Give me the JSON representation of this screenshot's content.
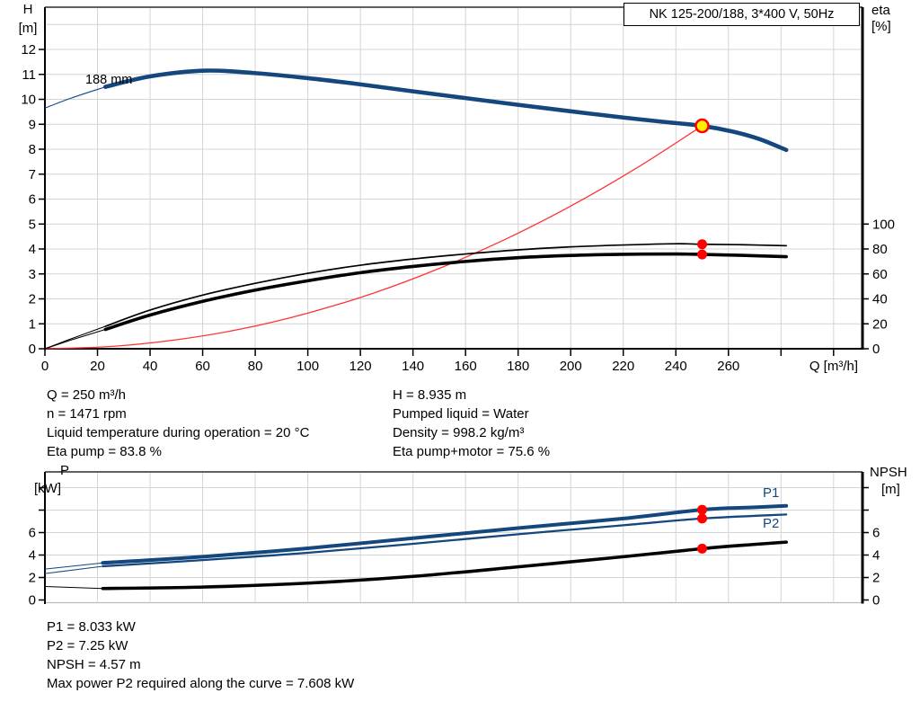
{
  "title_box": {
    "text": "NK 125-200/188, 3*400 V, 50Hz"
  },
  "colors": {
    "curve_blue": "#14477D",
    "curve_black": "#000000",
    "system_red": "#FF3333",
    "dot_red": "#FF0000",
    "duty_fill": "#FFEE00",
    "grid": "#D4D4D4",
    "axis": "#000000"
  },
  "axis_labels": {
    "top_left_1": "H",
    "top_left_2": "[m]",
    "top_right_1": "eta",
    "top_right_2": "[%]",
    "x_label": "Q [m³/h]",
    "bot_left_1": "P",
    "bot_left_2": "[kW]",
    "bot_right_1": "NPSH",
    "bot_right_2": "[m]"
  },
  "info_top": {
    "left": [
      "Q = 250 m³/h",
      "n = 1471 rpm",
      "Liquid temperature during operation = 20 °C",
      "Eta pump = 83.8 %"
    ],
    "right": [
      "H = 8.935 m",
      "Pumped liquid = Water",
      "Density = 998.2 kg/m³",
      "Eta pump+motor = 75.6 %"
    ]
  },
  "info_bottom": {
    "lines": [
      "P1 = 8.033 kW",
      "P2 = 7.25 kW",
      "NPSH = 4.57 m",
      "Max power P2 required along the curve = 7.608 kW"
    ]
  },
  "chart_data": [
    {
      "type": "line",
      "title": "NK 125-200/188, 3*400 V, 50Hz",
      "x": {
        "label": "Q [m³/h]",
        "min": 0,
        "max": 311,
        "grid_step": 20,
        "ticks_labeled": [
          0,
          20,
          40,
          60,
          80,
          100,
          120,
          140,
          160,
          180,
          200,
          220,
          240,
          260
        ],
        "ticks_unlabeled": [
          280,
          300
        ]
      },
      "y_left": {
        "label": "H [m]",
        "min": 0,
        "max": 13.7,
        "ticks": [
          0,
          1,
          2,
          3,
          4,
          5,
          6,
          7,
          8,
          9,
          10,
          11,
          12
        ],
        "labeled": [
          0,
          1,
          2,
          3,
          4,
          5,
          6,
          7,
          8,
          9,
          10,
          11,
          12
        ]
      },
      "y_right": {
        "label": "eta [%]",
        "ticks": [
          0,
          20,
          40,
          60,
          80,
          100
        ],
        "labeled": [
          0,
          20,
          40,
          60,
          80,
          100
        ],
        "left_units_per_unit": 0.05
      },
      "series": [
        {
          "name": "system-curve",
          "label": null,
          "axis": "left",
          "color": "system_red",
          "width": 1.3,
          "points": [
            [
              0,
              0
            ],
            [
              25,
              0.09
            ],
            [
              50,
              0.36
            ],
            [
              75,
              0.8
            ],
            [
              100,
              1.43
            ],
            [
              125,
              2.23
            ],
            [
              150,
              3.22
            ],
            [
              175,
              4.38
            ],
            [
              200,
              5.72
            ],
            [
              225,
              7.24
            ],
            [
              250,
              8.935
            ]
          ]
        },
        {
          "name": "eta-pump-curve",
          "label": null,
          "axis": "right",
          "color": "curve_black",
          "width": 1.7,
          "thin_until": 23,
          "points": [
            [
              0,
              0
            ],
            [
              10,
              8
            ],
            [
              23,
              18
            ],
            [
              40,
              31
            ],
            [
              60,
              43
            ],
            [
              80,
              52.5
            ],
            [
              100,
              60.5
            ],
            [
              120,
              67
            ],
            [
              140,
              72
            ],
            [
              160,
              76
            ],
            [
              180,
              79.3
            ],
            [
              200,
              81.7
            ],
            [
              220,
              83.2
            ],
            [
              240,
              84.2
            ],
            [
              250,
              83.8
            ],
            [
              265,
              83.4
            ],
            [
              282,
              82.6
            ]
          ]
        },
        {
          "name": "eta-pump-motor-curve",
          "label": null,
          "axis": "right",
          "color": "curve_black",
          "width": 3.6,
          "thin_until": 23,
          "points": [
            [
              0,
              0
            ],
            [
              10,
              7
            ],
            [
              23,
              15.5
            ],
            [
              40,
              27
            ],
            [
              60,
              38
            ],
            [
              80,
              47
            ],
            [
              100,
              54.5
            ],
            [
              120,
              61
            ],
            [
              140,
              66
            ],
            [
              160,
              70
            ],
            [
              180,
              73
            ],
            [
              200,
              74.8
            ],
            [
              220,
              75.7
            ],
            [
              240,
              76
            ],
            [
              250,
              75.6
            ],
            [
              265,
              74.9
            ],
            [
              282,
              73.8
            ]
          ]
        },
        {
          "name": "qh-curve-188mm",
          "label": "188 mm",
          "axis": "left",
          "color": "curve_blue",
          "width": 4.6,
          "thin_until": 23,
          "points": [
            [
              0,
              9.65
            ],
            [
              10,
              10.05
            ],
            [
              23,
              10.5
            ],
            [
              40,
              10.92
            ],
            [
              61,
              11.15
            ],
            [
              80,
              11.05
            ],
            [
              100,
              10.85
            ],
            [
              120,
              10.6
            ],
            [
              140,
              10.32
            ],
            [
              160,
              10.05
            ],
            [
              180,
              9.78
            ],
            [
              200,
              9.52
            ],
            [
              220,
              9.27
            ],
            [
              235,
              9.1
            ],
            [
              250,
              8.935
            ],
            [
              262,
              8.7
            ],
            [
              272,
              8.4
            ],
            [
              282,
              7.97
            ]
          ]
        }
      ],
      "markers": [
        {
          "name": "duty-point",
          "q": 250,
          "value": 8.935,
          "axis": "left",
          "style": "duty"
        },
        {
          "name": "eta-pump-point",
          "q": 250,
          "value": 83.8,
          "axis": "right",
          "style": "dot"
        },
        {
          "name": "eta-pump-motor-point",
          "q": 250,
          "value": 75.6,
          "axis": "right",
          "style": "dot"
        }
      ]
    },
    {
      "type": "line",
      "title": "",
      "x": {
        "label": "",
        "min": 0,
        "max": 311,
        "grid_step": 20,
        "ticks_labeled": [],
        "ticks_unlabeled": []
      },
      "y_left": {
        "label": "P [kW]",
        "min": 0,
        "max": 11.4,
        "ticks": [
          0,
          2,
          4,
          6,
          8,
          10
        ],
        "labeled": [
          0,
          2,
          4,
          6
        ]
      },
      "y_right": {
        "label": "NPSH [m]",
        "ticks": [
          0,
          2,
          4,
          6,
          8,
          10
        ],
        "labeled": [
          0,
          2,
          4,
          6
        ],
        "left_units_per_unit": 1
      },
      "series": [
        {
          "name": "npsh-curve",
          "label": null,
          "axis": "left",
          "color": "curve_black",
          "width": 3.6,
          "thin_until": 22,
          "points": [
            [
              0,
              1.2
            ],
            [
              22,
              1.02
            ],
            [
              60,
              1.15
            ],
            [
              100,
              1.5
            ],
            [
              140,
              2.1
            ],
            [
              180,
              2.95
            ],
            [
              220,
              3.85
            ],
            [
              250,
              4.57
            ],
            [
              270,
              4.95
            ],
            [
              282,
              5.15
            ]
          ]
        },
        {
          "name": "p2-curve",
          "label": "P2",
          "axis": "left",
          "color": "curve_blue",
          "width": 2.3,
          "thin_until": 22,
          "points": [
            [
              0,
              2.35
            ],
            [
              22,
              3.0
            ],
            [
              60,
              3.55
            ],
            [
              100,
              4.2
            ],
            [
              140,
              5.0
            ],
            [
              180,
              5.85
            ],
            [
              220,
              6.65
            ],
            [
              250,
              7.25
            ],
            [
              282,
              7.608
            ]
          ]
        },
        {
          "name": "p1-curve",
          "label": "P1",
          "axis": "left",
          "color": "curve_blue",
          "width": 4.0,
          "thin_until": 22,
          "points": [
            [
              0,
              2.75
            ],
            [
              22,
              3.3
            ],
            [
              60,
              3.85
            ],
            [
              100,
              4.6
            ],
            [
              140,
              5.5
            ],
            [
              180,
              6.4
            ],
            [
              220,
              7.25
            ],
            [
              250,
              8.033
            ],
            [
              270,
              8.25
            ],
            [
              282,
              8.38
            ]
          ]
        }
      ],
      "markers": [
        {
          "name": "p1-point",
          "q": 250,
          "value": 8.033,
          "axis": "left",
          "style": "dot"
        },
        {
          "name": "p2-point",
          "q": 250,
          "value": 7.25,
          "axis": "left",
          "style": "dot"
        },
        {
          "name": "npsh-point",
          "q": 250,
          "value": 4.57,
          "axis": "left",
          "style": "dot"
        }
      ]
    }
  ]
}
